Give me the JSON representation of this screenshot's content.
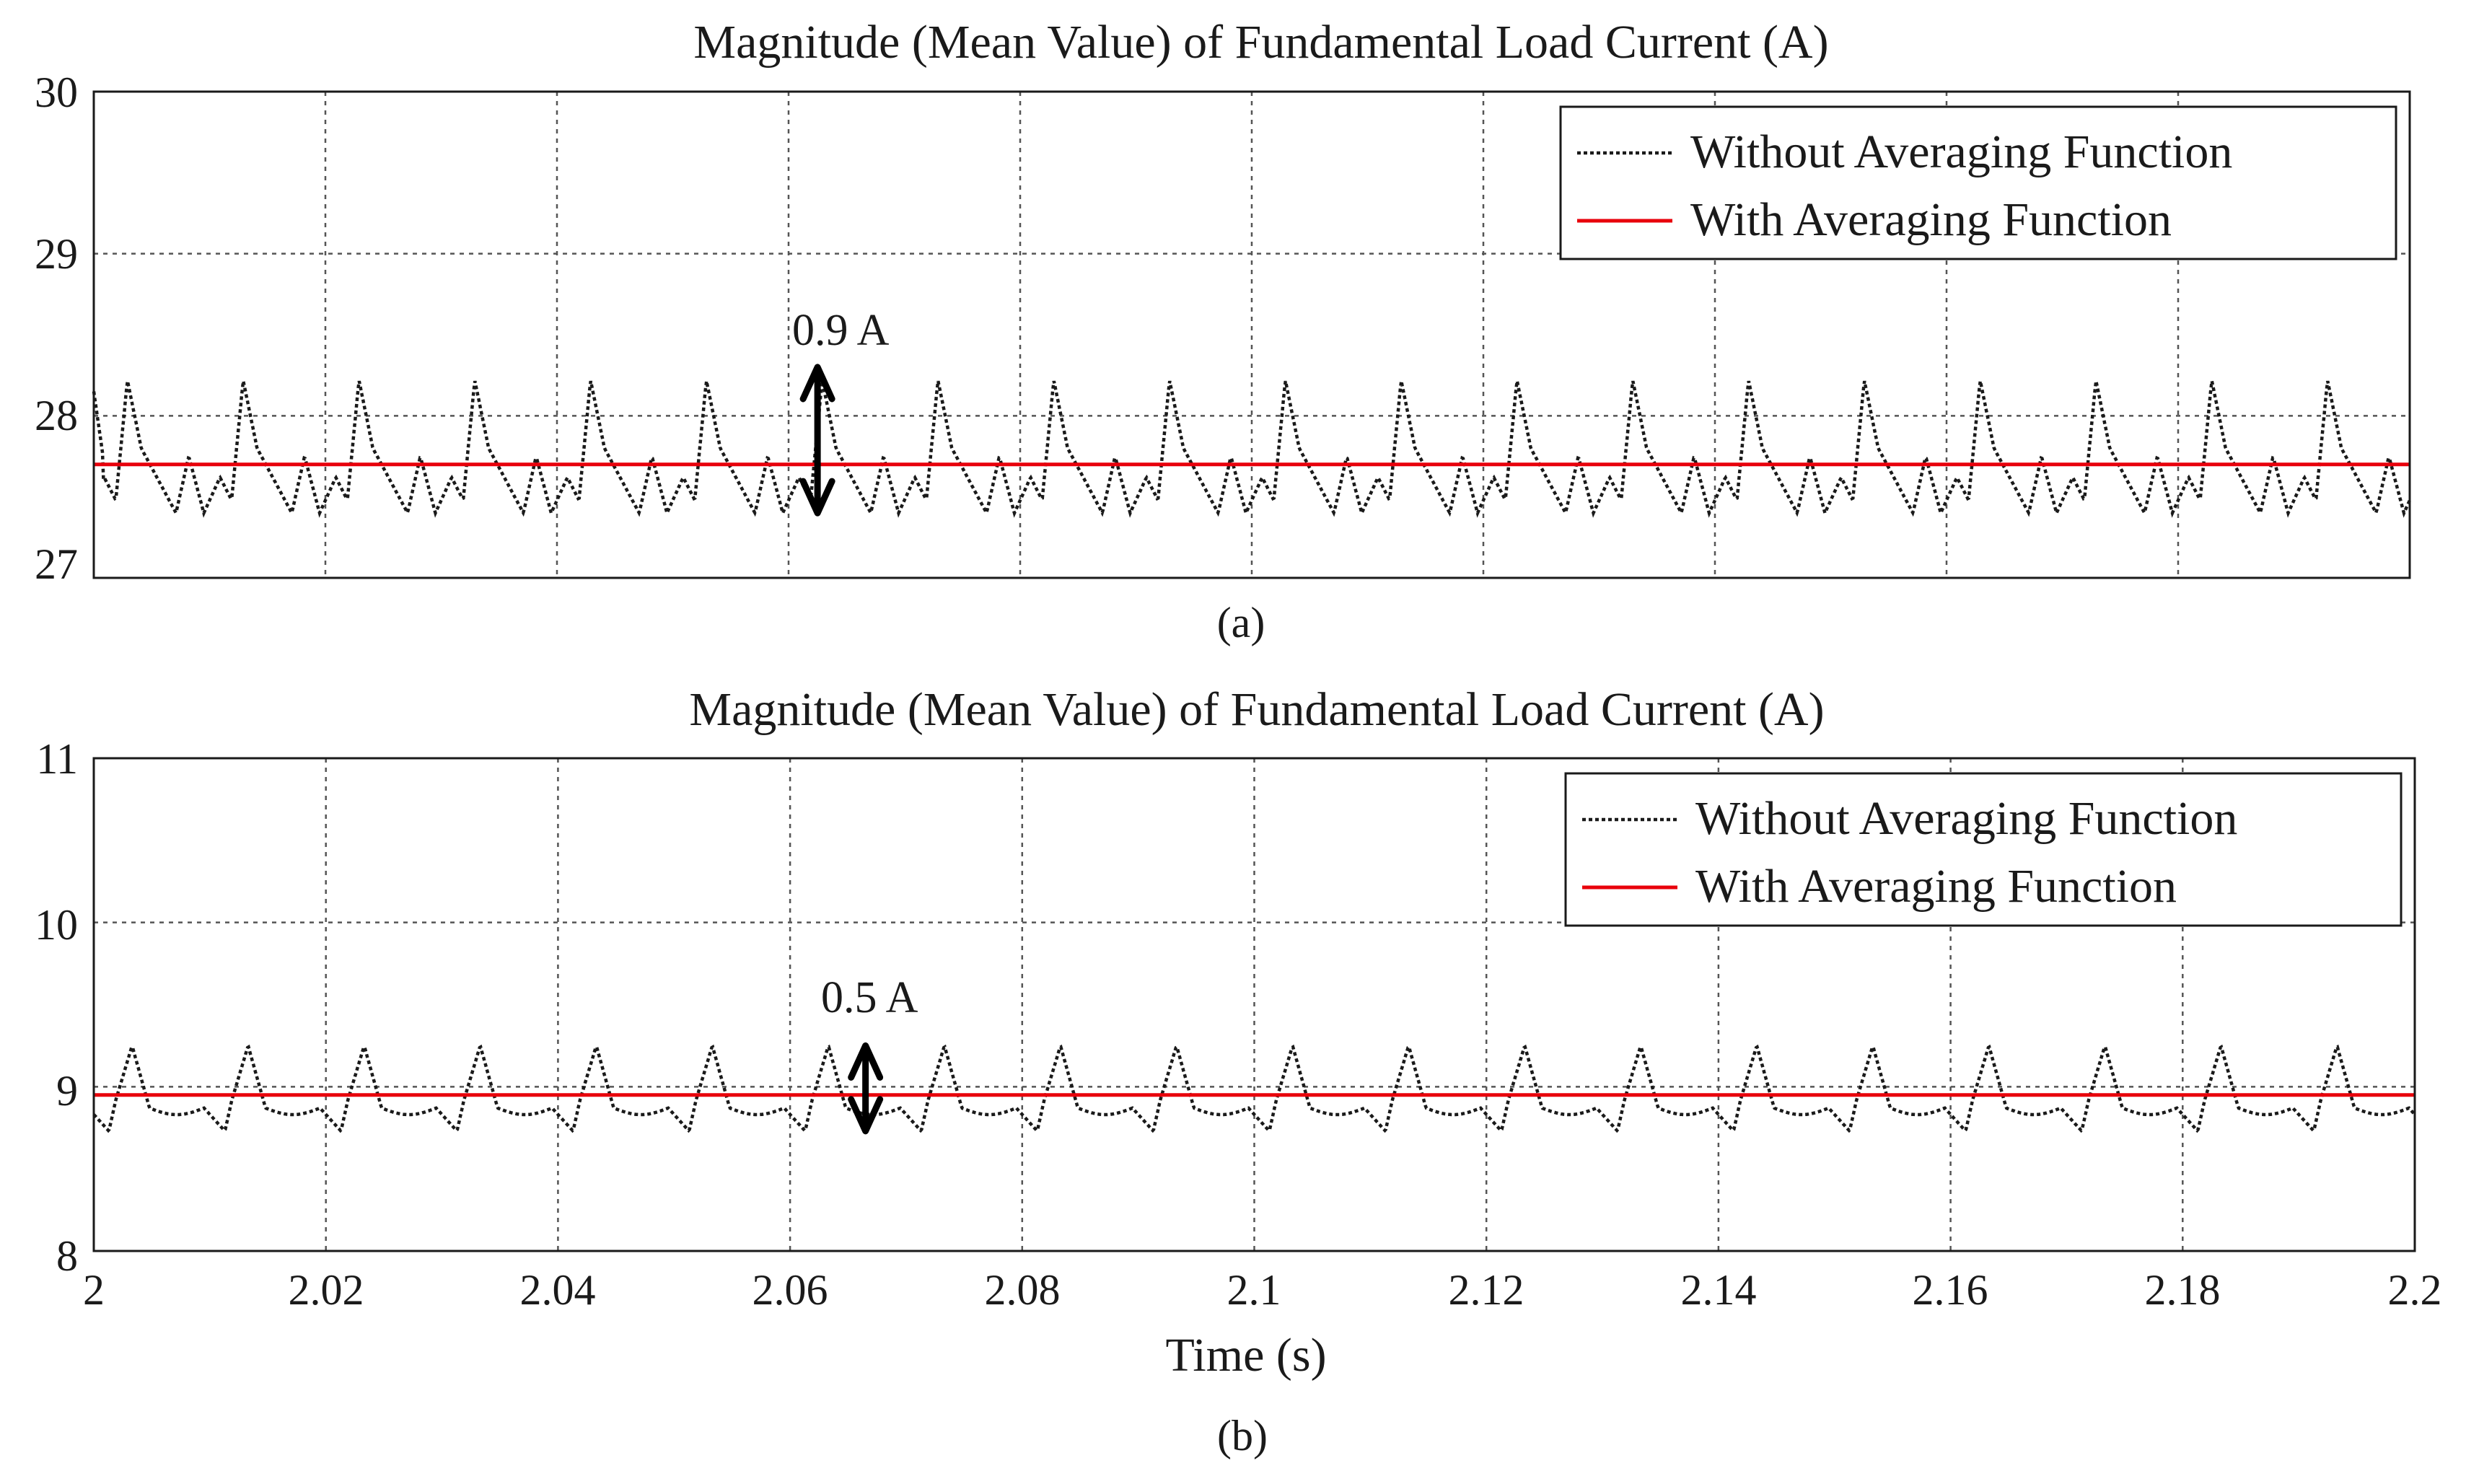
{
  "colors": {
    "with_averaging": "#e8000b",
    "without_averaging": "#1a1a1a"
  },
  "chart_data": [
    {
      "type": "line",
      "panel": "(a)",
      "title": "Magnitude (Mean Value) of Fundamental Load Current (A)",
      "xlabel": "",
      "ylabel": "",
      "xlim": [
        2.0,
        2.2
      ],
      "ylim": [
        27,
        30
      ],
      "yticks": [
        "27",
        "28",
        "29",
        "30"
      ],
      "grid": true,
      "legend": {
        "position": "top-right",
        "entries": [
          "Without Averaging Function",
          "With Averaging Function"
        ]
      },
      "series": [
        {
          "name": "Without Averaging Function",
          "style": "dotted",
          "period_s": 0.01,
          "waveform": {
            "base": 27.4,
            "peak": 28.22,
            "minor_peak": 27.75,
            "start_value": 28.15
          }
        },
        {
          "name": "With Averaging Function",
          "style": "solid",
          "value": 27.7
        }
      ],
      "annotation": {
        "text": "0.9 A",
        "x": 2.0625,
        "y_low": 27.4,
        "y_high": 28.3
      }
    },
    {
      "type": "line",
      "panel": "(b)",
      "title": "Magnitude (Mean Value) of Fundamental Load Current (A)",
      "xlabel": "Time (s)",
      "ylabel": "",
      "xlim": [
        2.0,
        2.2
      ],
      "ylim": [
        8,
        11
      ],
      "yticks": [
        "8",
        "9",
        "10",
        "11"
      ],
      "xticks": [
        "2",
        "2.02",
        "2.04",
        "2.06",
        "2.08",
        "2.1",
        "2.12",
        "2.14",
        "2.16",
        "2.18",
        "2.2"
      ],
      "grid": true,
      "legend": {
        "position": "top-right",
        "entries": [
          "Without Averaging Function",
          "With Averaging Function"
        ]
      },
      "series": [
        {
          "name": "Without Averaging Function",
          "style": "dotted",
          "period_s": 0.01,
          "waveform": {
            "base": 8.87,
            "peak": 9.25,
            "trough": 8.73
          }
        },
        {
          "name": "With Averaging Function",
          "style": "solid",
          "value": 8.95
        }
      ],
      "annotation": {
        "text": "0.5 A",
        "x": 2.0665,
        "y_low": 8.73,
        "y_high": 9.25
      }
    }
  ]
}
